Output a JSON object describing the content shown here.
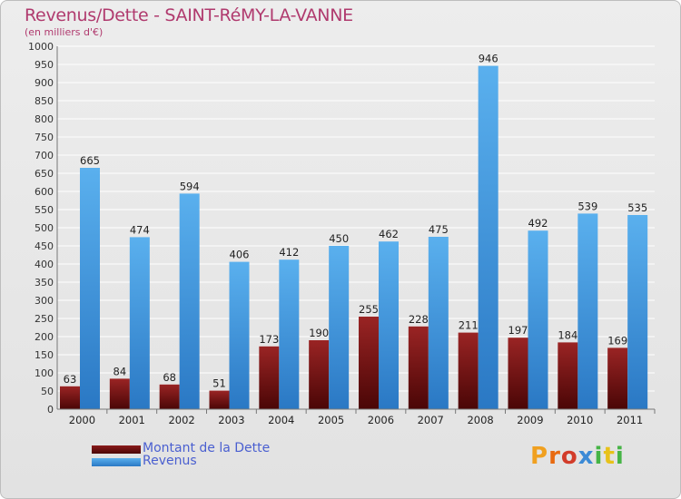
{
  "header": {
    "title": "Revenus/Dette - SAINT-RéMY-LA-VANNE",
    "subtitle": "(en milliers d'€)"
  },
  "legend": {
    "items": [
      {
        "label": "Montant de la Dette",
        "color": "#6b0d0d"
      },
      {
        "label": "Revenus",
        "color": "#4aa3e6"
      }
    ]
  },
  "brand": {
    "letters": [
      "P",
      "r",
      "o",
      "x",
      "i",
      "t",
      "i"
    ],
    "colors": [
      "#f0a020",
      "#e86a10",
      "#d23c2a",
      "#3b8ad6",
      "#46b446",
      "#e8c21a",
      "#46b446"
    ]
  },
  "chart_data": {
    "type": "bar",
    "categories": [
      "2000",
      "2001",
      "2002",
      "2003",
      "2004",
      "2005",
      "2006",
      "2007",
      "2008",
      "2009",
      "2010",
      "2011"
    ],
    "series": [
      {
        "name": "Montant de la Dette",
        "values": [
          63,
          84,
          68,
          51,
          173,
          190,
          255,
          228,
          211,
          197,
          184,
          169
        ],
        "color": "#6b0d0d"
      },
      {
        "name": "Revenus",
        "values": [
          665,
          474,
          594,
          406,
          412,
          450,
          462,
          475,
          946,
          492,
          539,
          535
        ],
        "color": "#4aa3e6"
      }
    ],
    "ylim": [
      0,
      1000
    ],
    "ytick_step": 50,
    "grid": true,
    "legend_position": "bottom-left"
  }
}
